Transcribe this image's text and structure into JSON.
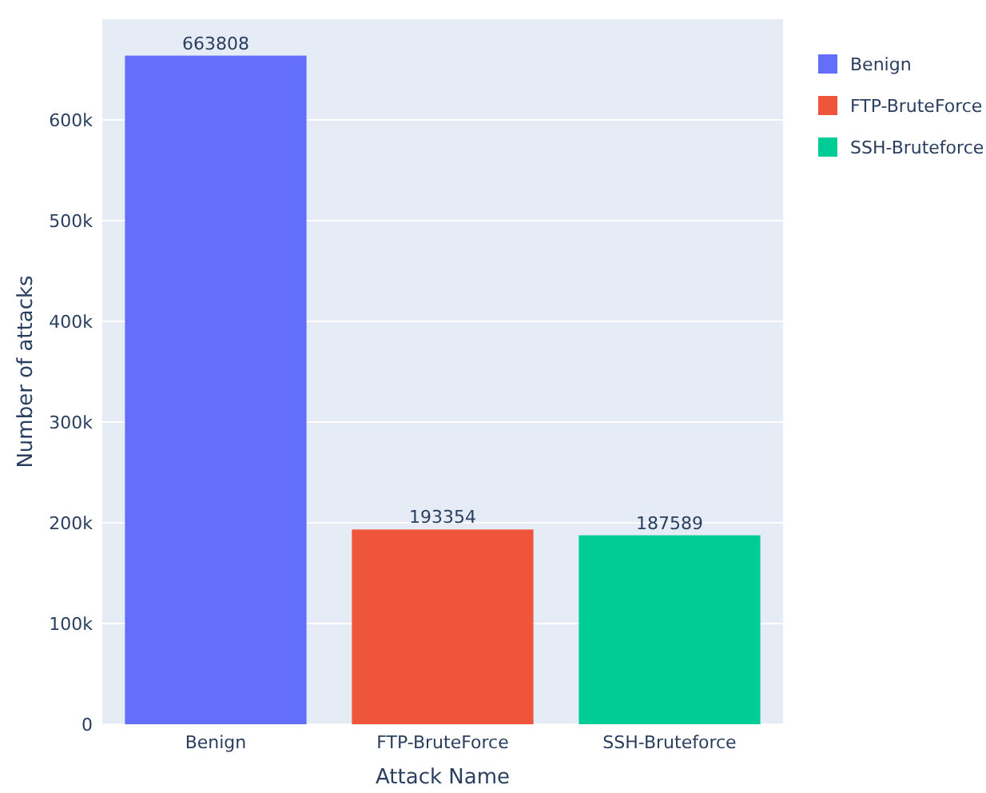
{
  "chart_data": {
    "type": "bar",
    "xlabel": "Attack Name",
    "ylabel": "Number of attacks",
    "categories": [
      "Benign",
      "FTP-BruteForce",
      "SSH-Bruteforce"
    ],
    "series": [
      {
        "name": "Benign",
        "color": "#636efa",
        "values": [
          663808,
          null,
          null
        ]
      },
      {
        "name": "FTP-BruteForce",
        "color": "#ef553b",
        "values": [
          null,
          193354,
          null
        ]
      },
      {
        "name": "SSH-Bruteforce",
        "color": "#00cc96",
        "values": [
          null,
          null,
          187589
        ]
      }
    ],
    "ylim": [
      0,
      700000
    ],
    "yticks": [
      0,
      {
        "value": 100000,
        "label": "100k"
      },
      {
        "value": 200000,
        "label": "200k"
      },
      {
        "value": 300000,
        "label": "300k"
      },
      {
        "value": 400000,
        "label": "400k"
      },
      {
        "value": 500000,
        "label": "500k"
      },
      {
        "value": 600000,
        "label": "600k"
      }
    ],
    "grid": "y",
    "legend": "top right",
    "data_labels": true
  }
}
